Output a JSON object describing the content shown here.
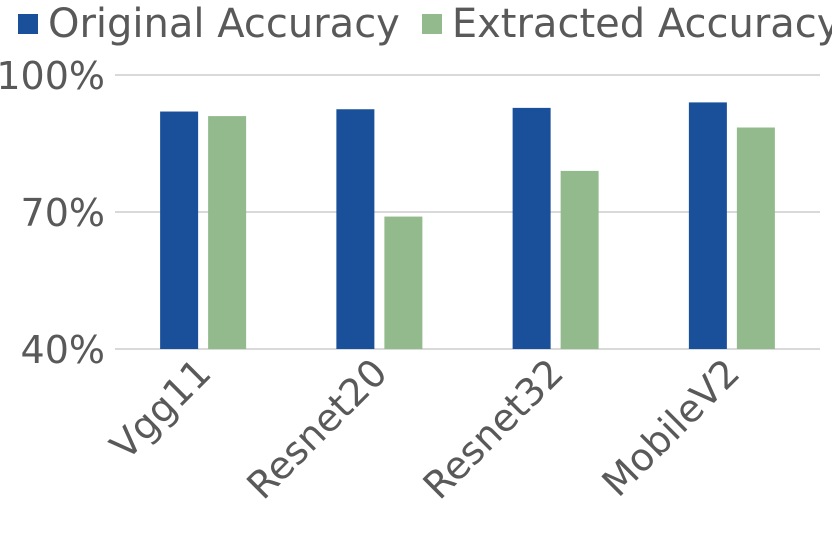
{
  "chart_data": {
    "type": "bar",
    "categories": [
      "Vgg11",
      "Resnet20",
      "Resnet32",
      "MobileV2"
    ],
    "series": [
      {
        "name": "Original Accuracy",
        "values": [
          92,
          92.5,
          92.8,
          94
        ],
        "color": "#1a4f9a"
      },
      {
        "name": "Extracted Accuracy",
        "values": [
          91,
          69,
          79,
          88.5
        ],
        "color": "#93ba8c"
      }
    ],
    "yticks": [
      "40%",
      "70%",
      "100%"
    ],
    "ytick_values": [
      40,
      70,
      100
    ],
    "ylim": [
      40,
      100
    ],
    "grid": true,
    "legend_position": "top-left",
    "title": "",
    "xlabel": "",
    "ylabel": ""
  }
}
